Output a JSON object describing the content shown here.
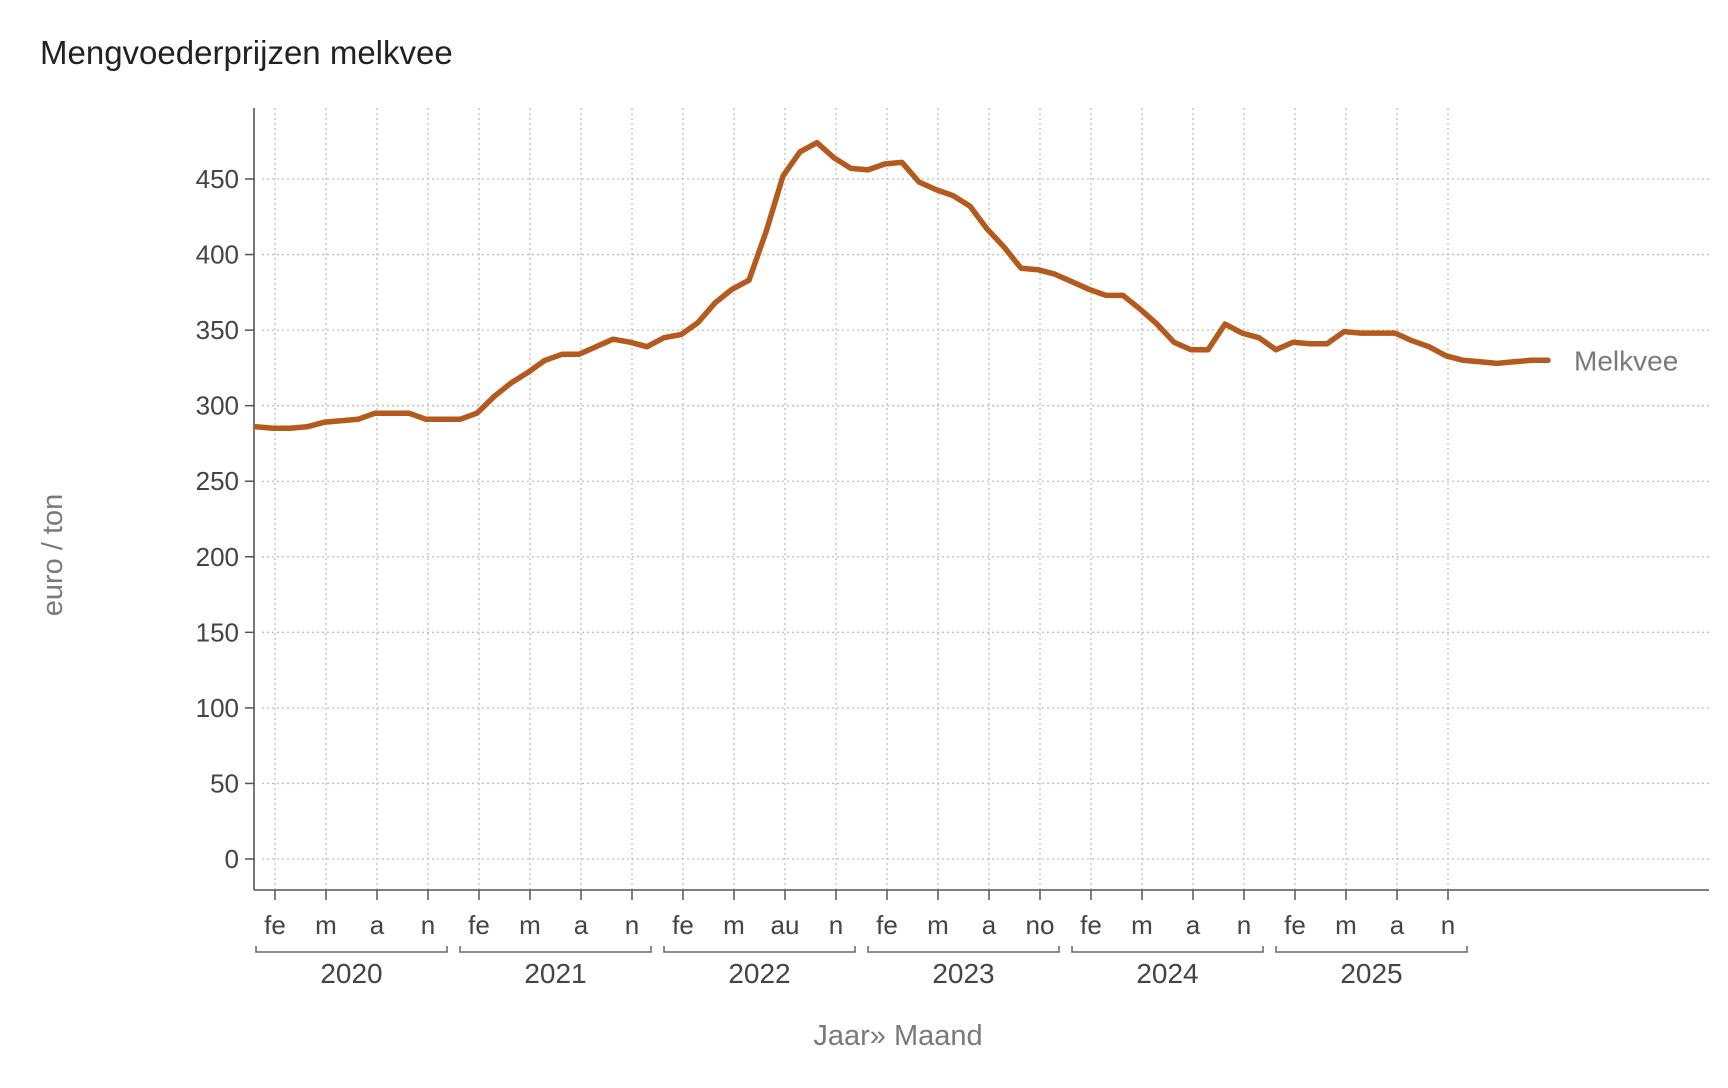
{
  "chart_data": {
    "type": "line",
    "title": "Mengvoederprijzen melkvee",
    "xlabel": "Jaar» Maand",
    "ylabel": "euro / ton",
    "ylim": [
      0,
      475
    ],
    "yticks": [
      0,
      50,
      100,
      150,
      200,
      250,
      300,
      350,
      400,
      450
    ],
    "years": [
      "2020",
      "2021",
      "2022",
      "2023",
      "2024",
      "2025"
    ],
    "month_ticks": [
      [
        "fe",
        "m",
        "a",
        "n"
      ],
      [
        "fe",
        "m",
        "a",
        "n"
      ],
      [
        "fe",
        "m",
        "au",
        "n"
      ],
      [
        "fe",
        "m",
        "a",
        "no"
      ],
      [
        "fe",
        "m",
        "a",
        "n"
      ],
      [
        "fe",
        "m",
        "a",
        "n"
      ]
    ],
    "grid": true,
    "legend": "end-of-line label",
    "series": [
      {
        "name": "Melkvee",
        "color": "#b55a1f",
        "x_start": "2020-01",
        "values": [
          286,
          285,
          285,
          286,
          289,
          290,
          291,
          295,
          295,
          295,
          291,
          291,
          291,
          295,
          306,
          315,
          322,
          330,
          334,
          334,
          339,
          344,
          342,
          339,
          345,
          347,
          355,
          368,
          377,
          383,
          415,
          452,
          468,
          474,
          464,
          457,
          456,
          460,
          461,
          448,
          443,
          439,
          432,
          417,
          405,
          391,
          390,
          387,
          382,
          377,
          373,
          373,
          364,
          354,
          342,
          337,
          337,
          354,
          348,
          345,
          337,
          342,
          341,
          341,
          349,
          348,
          348,
          348,
          343,
          339,
          333,
          330,
          329,
          328,
          329,
          330,
          330
        ]
      }
    ]
  }
}
